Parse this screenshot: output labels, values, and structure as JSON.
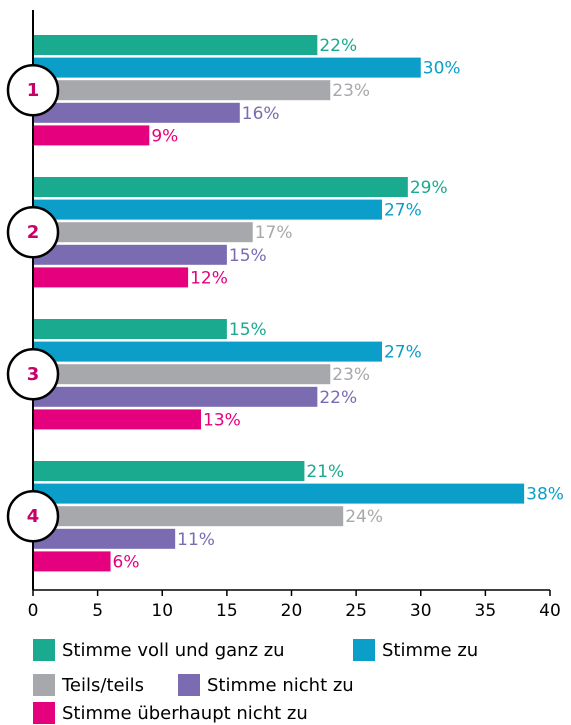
{
  "chart_data": {
    "type": "bar",
    "orientation": "horizontal",
    "categories": [
      "1",
      "2",
      "3",
      "4"
    ],
    "series": [
      {
        "name": "Stimme voll und ganz zu",
        "color": "#1aaa8f",
        "values": [
          22,
          29,
          15,
          21
        ],
        "value_labels": [
          "22%",
          "29%",
          "15%",
          "21%"
        ]
      },
      {
        "name": "Stimme zu",
        "color": "#0a9ec9",
        "values": [
          30,
          27,
          27,
          38
        ],
        "value_labels": [
          "30%",
          "27%",
          "27%",
          "38%"
        ]
      },
      {
        "name": "Teils/teils",
        "color": "#a6a8ab",
        "values": [
          23,
          17,
          23,
          24
        ],
        "value_labels": [
          "23%",
          "17%",
          "23%",
          "24%"
        ]
      },
      {
        "name": "Stimme nicht zu",
        "color": "#7b6bb0",
        "values": [
          16,
          15,
          22,
          11
        ],
        "value_labels": [
          "16%",
          "15%",
          "22%",
          "11%"
        ]
      },
      {
        "name": "Stimme überhaupt nicht zu",
        "color": "#e5007d",
        "values": [
          9,
          12,
          13,
          6
        ],
        "value_labels": [
          "9%",
          "12%",
          "13%",
          "6%"
        ]
      }
    ],
    "xlim": [
      0,
      40
    ],
    "xticks": [
      0,
      5,
      10,
      15,
      20,
      25,
      30,
      35,
      40
    ],
    "legend": "bottom"
  }
}
